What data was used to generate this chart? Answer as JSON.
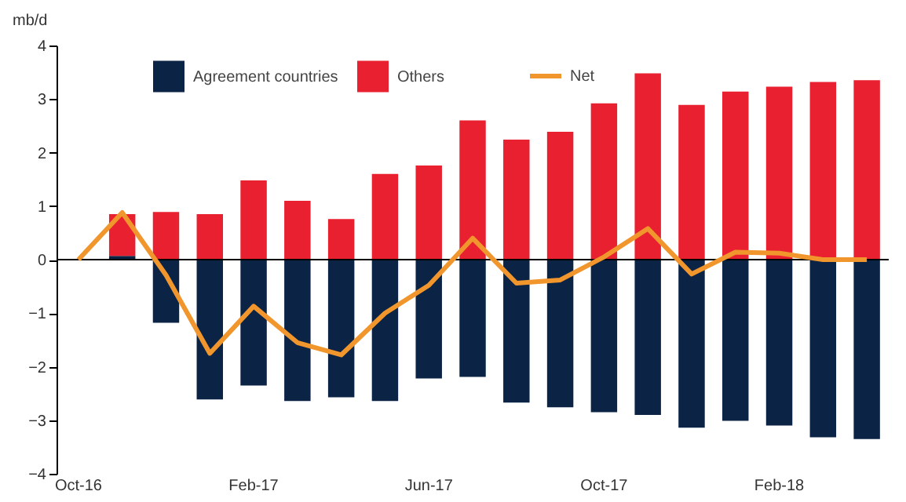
{
  "chart_data": {
    "type": "bar",
    "stacked": true,
    "ylabel": "mb/d",
    "categories": [
      "Oct-16",
      null,
      null,
      null,
      "Feb-17",
      null,
      null,
      null,
      "Jun-17",
      null,
      null,
      null,
      "Oct-17",
      null,
      null,
      null,
      "Feb-18",
      null,
      null
    ],
    "series": [
      {
        "name": "Agreement countries",
        "color": "#0b2345",
        "values": [
          null,
          0.07,
          -1.18,
          -2.61,
          -2.35,
          -2.64,
          -2.57,
          -2.64,
          -2.22,
          -2.19,
          -2.67,
          -2.76,
          -2.85,
          -2.9,
          -3.14,
          -3.01,
          -3.1,
          -3.32,
          -3.35
        ]
      },
      {
        "name": "Others",
        "color": "#e8202f",
        "values": [
          null,
          0.78,
          0.89,
          0.85,
          1.48,
          1.1,
          0.76,
          1.6,
          1.76,
          2.6,
          2.24,
          2.39,
          2.92,
          3.48,
          2.89,
          3.14,
          3.23,
          3.32,
          3.35
        ]
      },
      {
        "name": "Net",
        "type": "line",
        "color": "#f0962d",
        "values": [
          0,
          0.88,
          -0.29,
          -1.75,
          -0.87,
          -1.55,
          -1.78,
          -1.0,
          -0.48,
          0.4,
          -0.44,
          -0.38,
          0.05,
          0.58,
          -0.27,
          0.14,
          0.12,
          0.0,
          0.0
        ]
      }
    ],
    "ylim": [
      -4,
      4
    ],
    "yticks": [
      -4,
      -3,
      -2,
      -1,
      0,
      1,
      2,
      3,
      4
    ],
    "ref_lines": [
      {
        "axis": "y",
        "value": 0,
        "color": "#000000"
      }
    ],
    "grid": false,
    "legend": "top"
  }
}
